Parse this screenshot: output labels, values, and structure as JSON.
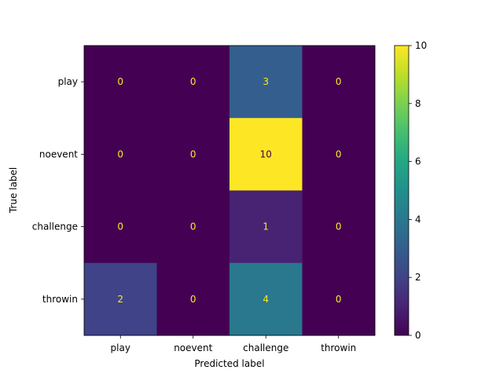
{
  "chart_data": {
    "type": "heatmap",
    "title": "",
    "xlabel": "Predicted label",
    "ylabel": "True label",
    "x_categories": [
      "play",
      "noevent",
      "challenge",
      "throwin"
    ],
    "y_categories": [
      "play",
      "noevent",
      "challenge",
      "throwin"
    ],
    "values": [
      [
        0,
        0,
        3,
        0
      ],
      [
        0,
        0,
        10,
        0
      ],
      [
        0,
        0,
        1,
        0
      ],
      [
        2,
        0,
        4,
        0
      ]
    ],
    "colormap": "viridis",
    "vmin": 0,
    "vmax": 10,
    "colorbar_ticks": [
      "0",
      "2",
      "4",
      "6",
      "8",
      "10"
    ]
  }
}
